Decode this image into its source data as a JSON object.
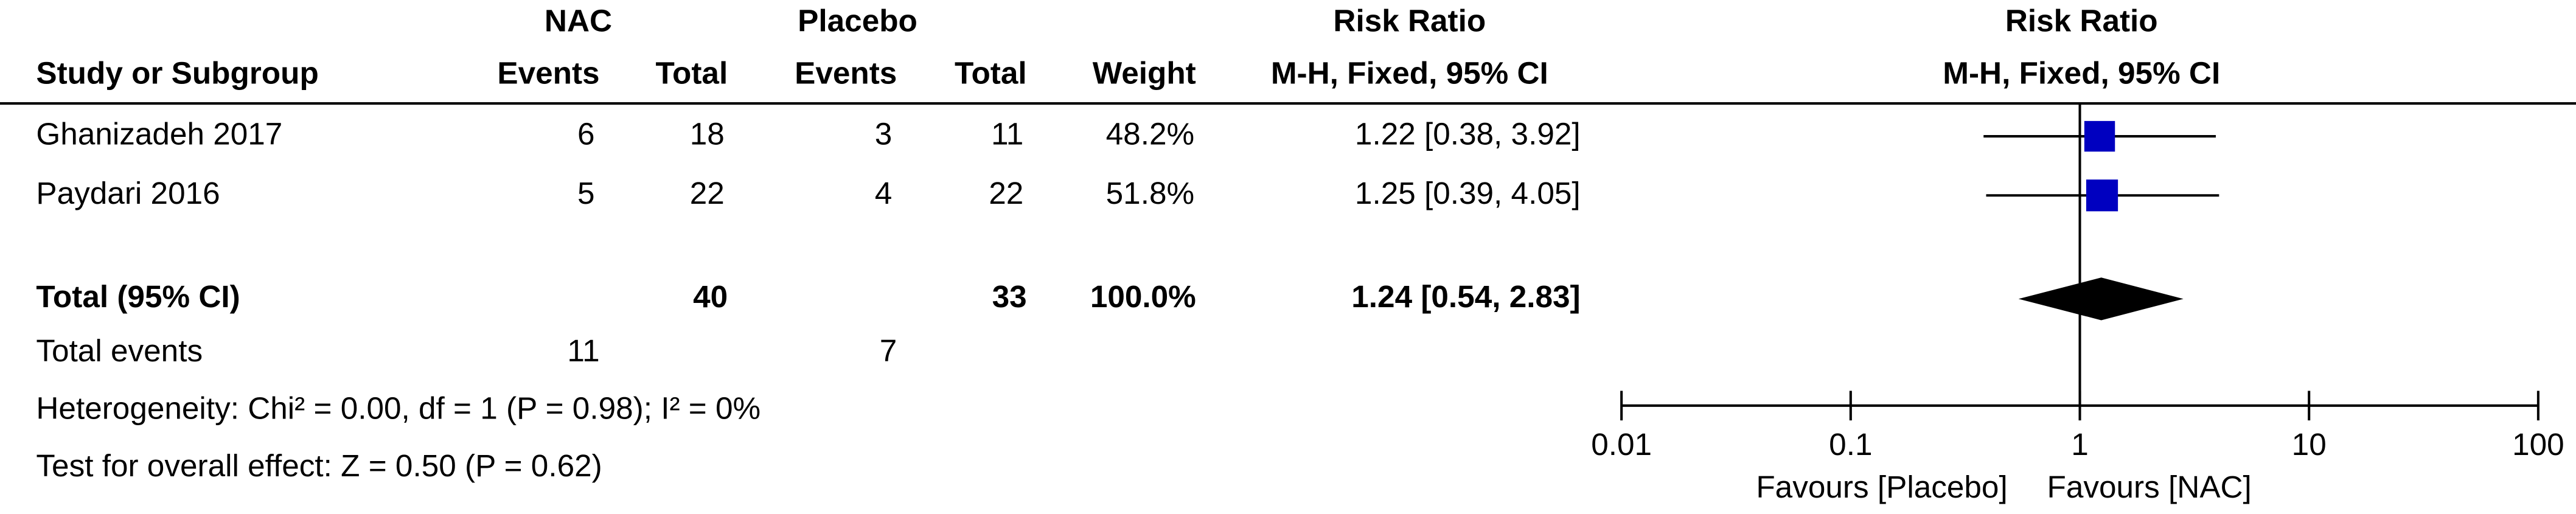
{
  "chart_data": {
    "type": "forest",
    "group_headers": {
      "nac": "NAC",
      "placebo": "Placebo",
      "table_rr": "Risk Ratio",
      "plot_rr": "Risk Ratio"
    },
    "column_headers": {
      "study": "Study or Subgroup",
      "events_nac": "Events",
      "total_nac": "Total",
      "events_placebo": "Events",
      "total_placebo": "Total",
      "weight": "Weight",
      "table_method": "M-H, Fixed, 95% CI",
      "plot_method": "M-H, Fixed, 95% CI"
    },
    "studies": [
      {
        "name": "Ghanizadeh 2017",
        "events_nac": 6,
        "total_nac": 18,
        "events_placebo": 3,
        "total_placebo": 11,
        "weight": 48.2,
        "weight_label": "48.2%",
        "rr": 1.22,
        "ci_low": 0.38,
        "ci_high": 3.92,
        "rr_label": "1.22 [0.38, 3.92]"
      },
      {
        "name": "Paydari 2016",
        "events_nac": 5,
        "total_nac": 22,
        "events_placebo": 4,
        "total_placebo": 22,
        "weight": 51.8,
        "weight_label": "51.8%",
        "rr": 1.25,
        "ci_low": 0.39,
        "ci_high": 4.05,
        "rr_label": "1.25 [0.39, 4.05]"
      }
    ],
    "total": {
      "name": "Total (95% CI)",
      "total_nac": 40,
      "total_placebo": 33,
      "weight": 100.0,
      "weight_label": "100.0%",
      "rr": 1.24,
      "ci_low": 0.54,
      "ci_high": 2.83,
      "rr_label": "1.24 [0.54, 2.83]"
    },
    "total_events": {
      "label": "Total events",
      "nac": 11,
      "placebo": 7
    },
    "heterogeneity": "Heterogeneity: Chi² = 0.00, df = 1 (P = 0.98); I² = 0%",
    "overall_effect": "Test for overall effect: Z = 0.50 (P = 0.62)",
    "xlim": [
      0.01,
      100
    ],
    "xticks": [
      0.01,
      0.1,
      1,
      10,
      100
    ],
    "log_x": true,
    "favours_left": "Favours [Placebo]",
    "favours_right": "Favours [NAC]",
    "study_color": "#0000c0",
    "total_color": "#000000"
  }
}
